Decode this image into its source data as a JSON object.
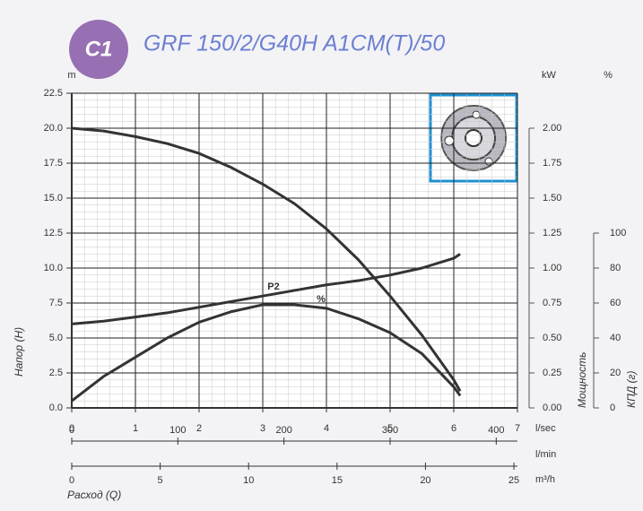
{
  "chart_data": {
    "type": "line",
    "badge": "C1",
    "title": "GRF 150/2/G40H A1CM(T)/50",
    "xlabel": "Расход (Q)",
    "ylabel": "Напор (H)",
    "y2label": "Мощность",
    "y3label": "КПД (г)",
    "x_unit": "l/sec",
    "y_unit": "m",
    "y2_unit": "kW",
    "y3_unit": "%",
    "grid": true,
    "xlim": [
      0,
      7
    ],
    "xticks": [
      0,
      1,
      2,
      3,
      4,
      5,
      6,
      7
    ],
    "x2": {
      "unit": "l/min",
      "lim": [
        0,
        420
      ],
      "ticks": [
        0,
        100,
        200,
        300,
        400
      ]
    },
    "x3": {
      "unit": "m³/h",
      "lim": [
        0,
        25.2
      ],
      "ticks": [
        0,
        5,
        10,
        15,
        20,
        25
      ]
    },
    "ylim": [
      0,
      22.5
    ],
    "yticks": [
      {
        "value": 0,
        "label": "0.0"
      },
      2.5,
      {
        "value": 5,
        "label": "5.0"
      },
      7.5,
      {
        "value": 10,
        "label": "10.0"
      },
      12.5,
      {
        "value": 15,
        "label": "15.0"
      },
      17.5,
      {
        "value": 20,
        "label": "20.0"
      },
      22.5
    ],
    "y2lim": [
      0,
      2.25
    ],
    "y2ticks": [
      {
        "value": 0,
        "label": "0.00"
      },
      0.25,
      {
        "value": 0.5,
        "label": "0.50"
      },
      0.75,
      {
        "value": 1,
        "label": "1.00"
      },
      1.25,
      {
        "value": 1.5,
        "label": "1.50"
      },
      1.75,
      {
        "value": 2,
        "label": "2.00"
      }
    ],
    "y3lim": [
      0,
      180
    ],
    "y3ticks": [
      0,
      20,
      40,
      60,
      80,
      100
    ],
    "x": [
      0,
      0.5,
      1,
      1.5,
      2,
      2.5,
      3,
      3.5,
      4,
      4.5,
      5,
      5.5,
      6,
      6.1
    ],
    "series": [
      {
        "color": "#333333",
        "values": [
          20.0,
          19.8,
          19.4,
          18.9,
          18.2,
          17.2,
          16.0,
          14.6,
          12.8,
          10.6,
          8.0,
          5.2,
          2.0,
          1.2
        ]
      },
      {
        "name": "P2",
        "axis": "y2",
        "color": "#333333",
        "values": [
          0.6,
          0.62,
          0.65,
          0.68,
          0.72,
          0.76,
          0.8,
          0.84,
          0.88,
          0.91,
          0.95,
          1.0,
          1.07,
          1.1
        ]
      },
      {
        "name": "%",
        "axis": "y3",
        "color": "#333333",
        "values": [
          4,
          18,
          29,
          40,
          49,
          55,
          59,
          59,
          57,
          51,
          43,
          31,
          12,
          7
        ]
      }
    ]
  }
}
